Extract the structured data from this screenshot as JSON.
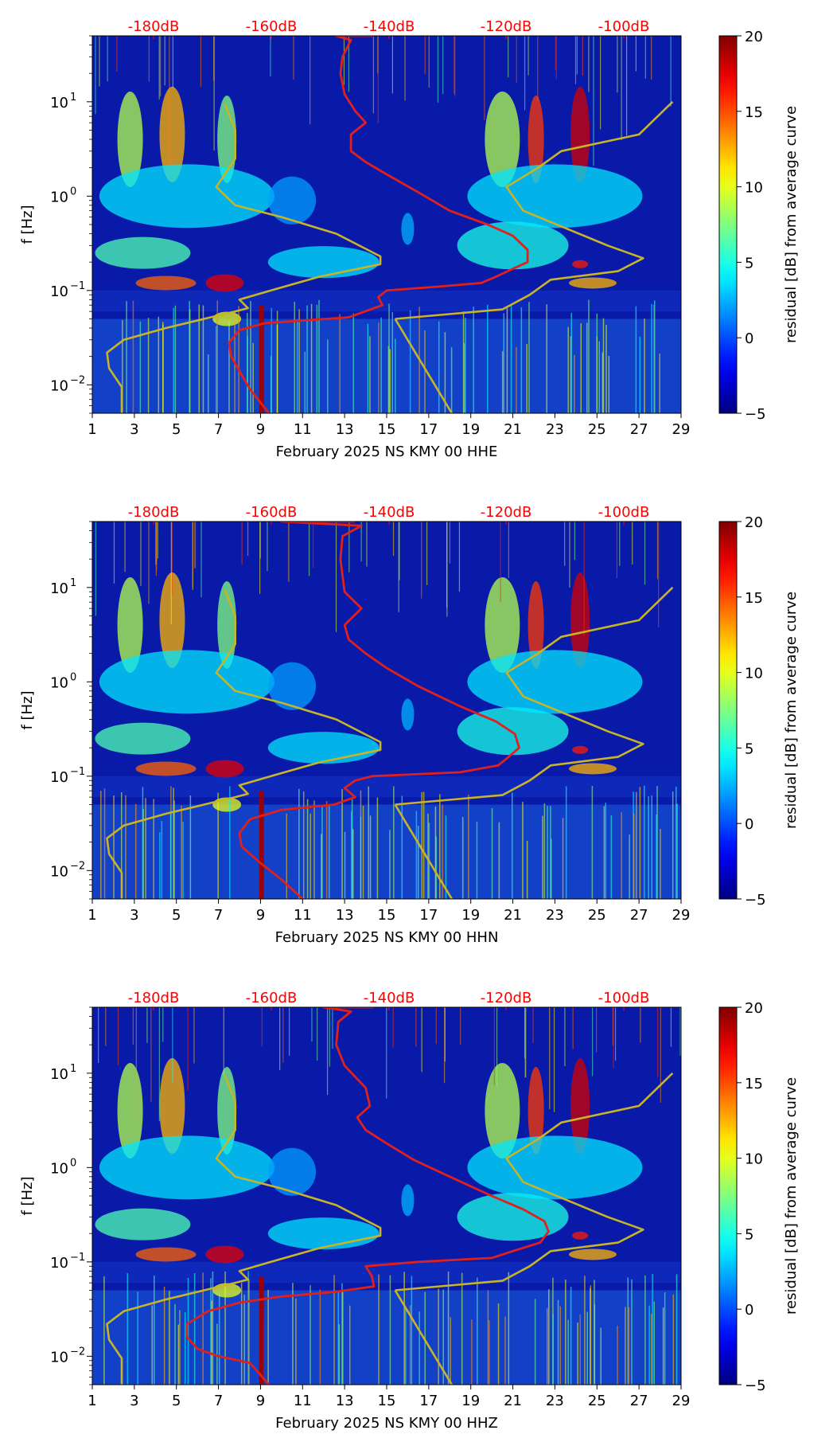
{
  "chart_data": [
    {
      "type": "heatmap",
      "title": "",
      "xlabel": "February 2025 NS KMY 00 HHE",
      "ylabel": "f [Hz]",
      "x_ticks": [
        "1",
        "3",
        "5",
        "7",
        "9",
        "11",
        "13",
        "15",
        "17",
        "19",
        "21",
        "23",
        "25",
        "27",
        "29"
      ],
      "x_range": [
        1,
        29
      ],
      "y_scale": "log",
      "y_range": [
        0.005,
        50
      ],
      "y_ticks": [
        {
          "value": 0.01,
          "base": "10",
          "exp": "−2"
        },
        {
          "value": 0.1,
          "base": "10",
          "exp": "−1"
        },
        {
          "value": 1,
          "base": "10",
          "exp": "0"
        },
        {
          "value": 10,
          "base": "10",
          "exp": "1"
        }
      ],
      "top_labels": [
        "-180dB",
        "-160dB",
        "-140dB",
        "-120dB",
        "-100dB"
      ],
      "top_label_color": "#ff0000",
      "colorbar": {
        "label": "residual [dB] from average curve",
        "range": [
          -5,
          20
        ],
        "ticks": [
          "−5",
          "0",
          "5",
          "10",
          "15",
          "20"
        ],
        "colormap": "jet"
      },
      "noise_model_curve": {
        "color": "#c8b428",
        "points": [
          [
            2.4,
            0.005
          ],
          [
            2.4,
            0.0095
          ],
          [
            1.8,
            0.015
          ],
          [
            1.7,
            0.022
          ],
          [
            2.5,
            0.03
          ],
          [
            4.5,
            0.04
          ],
          [
            7.8,
            0.06
          ],
          [
            8.4,
            0.065
          ],
          [
            8.0,
            0.08
          ],
          [
            9.5,
            0.1
          ],
          [
            11.8,
            0.14
          ],
          [
            14.7,
            0.19
          ],
          [
            14.7,
            0.23
          ],
          [
            12.6,
            0.4
          ],
          [
            10.0,
            0.6
          ],
          [
            7.8,
            0.8
          ],
          [
            6.9,
            1.25
          ],
          [
            7.8,
            2.5
          ],
          [
            7.8,
            5
          ],
          [
            7.3,
            9.5
          ]
        ]
      },
      "noise_model_curve_2": {
        "color": "#c8b428",
        "points": [
          [
            15.4,
            0.05
          ],
          [
            16,
            0.03
          ],
          [
            18.1,
            0.005
          ]
        ]
      },
      "noise_model_curve_3": {
        "color": "#c8b428",
        "points": [
          [
            15.4,
            0.05
          ],
          [
            20.5,
            0.063
          ],
          [
            21.8,
            0.09
          ],
          [
            22.8,
            0.13
          ],
          [
            26.0,
            0.16
          ],
          [
            27.2,
            0.22
          ],
          [
            25.5,
            0.3
          ],
          [
            21.5,
            0.7
          ],
          [
            20.7,
            1.25
          ],
          [
            22.2,
            2
          ],
          [
            23.3,
            3
          ],
          [
            27.0,
            4.5
          ],
          [
            28.6,
            10
          ]
        ]
      },
      "mean_psd_curve": {
        "color": "#e0201c",
        "points": [
          [
            9.4,
            0.005
          ],
          [
            9.0,
            0.0065
          ],
          [
            8.5,
            0.009
          ],
          [
            8.0,
            0.014
          ],
          [
            7.6,
            0.02
          ],
          [
            7.5,
            0.028
          ],
          [
            8.0,
            0.038
          ],
          [
            9.2,
            0.045
          ],
          [
            11.0,
            0.048
          ],
          [
            13.2,
            0.052
          ],
          [
            14.8,
            0.07
          ],
          [
            14.6,
            0.085
          ],
          [
            15.0,
            0.1
          ],
          [
            17.5,
            0.11
          ],
          [
            19.5,
            0.12
          ],
          [
            20.2,
            0.14
          ],
          [
            21.0,
            0.17
          ],
          [
            21.7,
            0.2
          ],
          [
            21.7,
            0.27
          ],
          [
            21.0,
            0.38
          ],
          [
            19.8,
            0.5
          ],
          [
            18.0,
            0.7
          ],
          [
            16.5,
            1.1
          ],
          [
            15.0,
            1.7
          ],
          [
            14.0,
            2.3
          ],
          [
            13.3,
            3.0
          ],
          [
            13.3,
            4.5
          ],
          [
            14.0,
            6
          ],
          [
            13.5,
            8
          ],
          [
            13.0,
            12
          ],
          [
            12.8,
            20
          ],
          [
            12.9,
            30
          ],
          [
            13.3,
            45
          ],
          [
            12.6,
            50
          ],
          [
            14.4,
            50
          ]
        ]
      },
      "panel_index": 1
    },
    {
      "type": "heatmap",
      "title": "",
      "xlabel": "February 2025 NS KMY 00 HHN",
      "ylabel": "f [Hz]",
      "x_ticks": [
        "1",
        "3",
        "5",
        "7",
        "9",
        "11",
        "13",
        "15",
        "17",
        "19",
        "21",
        "23",
        "25",
        "27",
        "29"
      ],
      "x_range": [
        1,
        29
      ],
      "y_scale": "log",
      "y_range": [
        0.005,
        50
      ],
      "y_ticks": [
        {
          "value": 0.01,
          "base": "10",
          "exp": "−2"
        },
        {
          "value": 0.1,
          "base": "10",
          "exp": "−1"
        },
        {
          "value": 1,
          "base": "10",
          "exp": "0"
        },
        {
          "value": 10,
          "base": "10",
          "exp": "1"
        }
      ],
      "top_labels": [
        "-180dB",
        "-160dB",
        "-140dB",
        "-120dB",
        "-100dB"
      ],
      "top_label_color": "#ff0000",
      "colorbar": {
        "label": "residual [dB] from average curve",
        "range": [
          -5,
          20
        ],
        "ticks": [
          "−5",
          "0",
          "5",
          "10",
          "15",
          "20"
        ],
        "colormap": "jet"
      },
      "noise_model_curve": {
        "color": "#c8b428",
        "points": [
          [
            2.4,
            0.005
          ],
          [
            2.4,
            0.0095
          ],
          [
            1.8,
            0.015
          ],
          [
            1.7,
            0.022
          ],
          [
            2.5,
            0.03
          ],
          [
            4.5,
            0.04
          ],
          [
            7.8,
            0.06
          ],
          [
            8.4,
            0.065
          ],
          [
            8.0,
            0.08
          ],
          [
            9.5,
            0.1
          ],
          [
            11.8,
            0.14
          ],
          [
            14.7,
            0.19
          ],
          [
            14.7,
            0.23
          ],
          [
            12.6,
            0.4
          ],
          [
            10.0,
            0.6
          ],
          [
            7.8,
            0.8
          ],
          [
            6.9,
            1.25
          ],
          [
            7.8,
            2.5
          ],
          [
            7.8,
            5
          ],
          [
            7.3,
            9.5
          ]
        ]
      },
      "noise_model_curve_2": {
        "color": "#c8b428",
        "points": [
          [
            15.4,
            0.05
          ],
          [
            16,
            0.03
          ],
          [
            18.1,
            0.005
          ]
        ]
      },
      "noise_model_curve_3": {
        "color": "#c8b428",
        "points": [
          [
            15.4,
            0.05
          ],
          [
            20.5,
            0.063
          ],
          [
            21.8,
            0.09
          ],
          [
            22.8,
            0.13
          ],
          [
            26.0,
            0.16
          ],
          [
            27.2,
            0.22
          ],
          [
            25.5,
            0.3
          ],
          [
            21.5,
            0.7
          ],
          [
            20.7,
            1.25
          ],
          [
            22.2,
            2
          ],
          [
            23.3,
            3
          ],
          [
            27.0,
            4.5
          ],
          [
            28.6,
            10
          ]
        ]
      },
      "mean_psd_curve": {
        "color": "#e0201c",
        "points": [
          [
            11.0,
            0.005
          ],
          [
            10.0,
            0.008
          ],
          [
            9.0,
            0.012
          ],
          [
            8.1,
            0.018
          ],
          [
            8.0,
            0.025
          ],
          [
            8.5,
            0.035
          ],
          [
            10.0,
            0.044
          ],
          [
            12.5,
            0.05
          ],
          [
            13.5,
            0.06
          ],
          [
            13.0,
            0.075
          ],
          [
            13.5,
            0.09
          ],
          [
            14.3,
            0.1
          ],
          [
            18.5,
            0.11
          ],
          [
            20.3,
            0.13
          ],
          [
            20.8,
            0.16
          ],
          [
            21.3,
            0.2
          ],
          [
            21.1,
            0.28
          ],
          [
            20.2,
            0.38
          ],
          [
            18.5,
            0.55
          ],
          [
            16.5,
            0.9
          ],
          [
            15.0,
            1.4
          ],
          [
            14.0,
            2.0
          ],
          [
            13.2,
            2.8
          ],
          [
            13.0,
            4
          ],
          [
            13.8,
            6
          ],
          [
            13.0,
            9
          ],
          [
            12.8,
            20
          ],
          [
            12.9,
            35
          ],
          [
            13.8,
            45
          ],
          [
            10.0,
            50
          ],
          [
            13.5,
            50
          ]
        ]
      },
      "panel_index": 2
    },
    {
      "type": "heatmap",
      "title": "",
      "xlabel": "February 2025 NS KMY 00 HHZ",
      "ylabel": "f [Hz]",
      "x_ticks": [
        "1",
        "3",
        "5",
        "7",
        "9",
        "11",
        "13",
        "15",
        "17",
        "19",
        "21",
        "23",
        "25",
        "27",
        "29"
      ],
      "x_range": [
        1,
        29
      ],
      "y_scale": "log",
      "y_range": [
        0.005,
        50
      ],
      "y_ticks": [
        {
          "value": 0.01,
          "base": "10",
          "exp": "−2"
        },
        {
          "value": 0.1,
          "base": "10",
          "exp": "−1"
        },
        {
          "value": 1,
          "base": "10",
          "exp": "0"
        },
        {
          "value": 10,
          "base": "10",
          "exp": "1"
        }
      ],
      "top_labels": [
        "-180dB",
        "-160dB",
        "-140dB",
        "-120dB",
        "-100dB"
      ],
      "top_label_color": "#ff0000",
      "colorbar": {
        "label": "residual [dB] from average curve",
        "range": [
          -5,
          20
        ],
        "ticks": [
          "−5",
          "0",
          "5",
          "10",
          "15",
          "20"
        ],
        "colormap": "jet"
      },
      "noise_model_curve": {
        "color": "#c8b428",
        "points": [
          [
            2.4,
            0.005
          ],
          [
            2.4,
            0.0095
          ],
          [
            1.8,
            0.015
          ],
          [
            1.7,
            0.022
          ],
          [
            2.5,
            0.03
          ],
          [
            4.5,
            0.04
          ],
          [
            7.8,
            0.06
          ],
          [
            8.4,
            0.065
          ],
          [
            8.0,
            0.08
          ],
          [
            9.5,
            0.1
          ],
          [
            11.8,
            0.14
          ],
          [
            14.7,
            0.19
          ],
          [
            14.7,
            0.23
          ],
          [
            12.6,
            0.4
          ],
          [
            10.0,
            0.6
          ],
          [
            7.8,
            0.8
          ],
          [
            6.9,
            1.25
          ],
          [
            7.8,
            2.5
          ],
          [
            7.8,
            5
          ],
          [
            7.3,
            9.5
          ]
        ]
      },
      "noise_model_curve_2": {
        "color": "#c8b428",
        "points": [
          [
            15.4,
            0.05
          ],
          [
            16,
            0.03
          ],
          [
            18.1,
            0.005
          ]
        ]
      },
      "noise_model_curve_3": {
        "color": "#c8b428",
        "points": [
          [
            15.4,
            0.05
          ],
          [
            20.5,
            0.063
          ],
          [
            21.8,
            0.09
          ],
          [
            22.8,
            0.13
          ],
          [
            26.0,
            0.16
          ],
          [
            27.2,
            0.22
          ],
          [
            25.5,
            0.3
          ],
          [
            21.5,
            0.7
          ],
          [
            20.7,
            1.25
          ],
          [
            22.2,
            2
          ],
          [
            23.3,
            3
          ],
          [
            27.0,
            4.5
          ],
          [
            28.6,
            10
          ]
        ]
      },
      "mean_psd_curve": {
        "color": "#e0201c",
        "points": [
          [
            9.4,
            0.005
          ],
          [
            8.5,
            0.0085
          ],
          [
            7.0,
            0.01
          ],
          [
            6.0,
            0.012
          ],
          [
            5.5,
            0.016
          ],
          [
            5.5,
            0.022
          ],
          [
            6.5,
            0.03
          ],
          [
            8.0,
            0.037
          ],
          [
            10.0,
            0.043
          ],
          [
            12.5,
            0.048
          ],
          [
            14.4,
            0.055
          ],
          [
            14.3,
            0.07
          ],
          [
            14.0,
            0.09
          ],
          [
            16.5,
            0.1
          ],
          [
            20.0,
            0.11
          ],
          [
            21.0,
            0.13
          ],
          [
            22.3,
            0.16
          ],
          [
            22.7,
            0.21
          ],
          [
            22.5,
            0.27
          ],
          [
            21.5,
            0.36
          ],
          [
            20.0,
            0.5
          ],
          [
            18.0,
            0.8
          ],
          [
            16.3,
            1.2
          ],
          [
            15.0,
            1.8
          ],
          [
            14.0,
            2.5
          ],
          [
            13.6,
            3.4
          ],
          [
            14.2,
            4.5
          ],
          [
            14.0,
            7
          ],
          [
            13.0,
            12
          ],
          [
            12.6,
            20
          ],
          [
            12.7,
            35
          ],
          [
            13.3,
            45
          ],
          [
            12.0,
            50
          ],
          [
            14.4,
            50
          ]
        ]
      },
      "panel_index": 3
    }
  ]
}
